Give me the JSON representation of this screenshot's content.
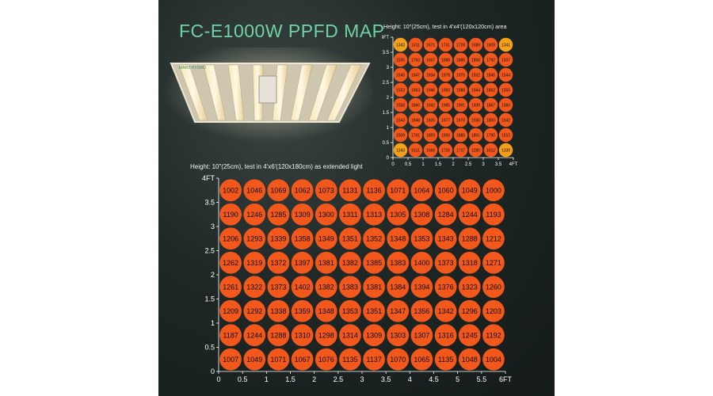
{
  "title": "FC-E1000W PPFD MAP",
  "lamp": {
    "brand_text": "MARS HYDRO"
  },
  "colors": {
    "title": "#6fd1a4",
    "dot": "#f2571c",
    "dot_corner": "#f4a01b",
    "axis": "#ffffff",
    "text": "#111111"
  },
  "chart_data": [
    {
      "type": "heatmap",
      "caption": "Height: 10\"(25cm), test in 4'x4'(120x120cm) area",
      "x_ticks": [
        "0",
        "0.5",
        "1",
        "1.5",
        "2",
        "2.5",
        "3",
        "3.5",
        "4FT"
      ],
      "y_ticks": [
        "0",
        "0.5",
        "1",
        "1.5",
        "2",
        "2.5",
        "3",
        "3.5",
        "4FT"
      ],
      "xlim": [
        0,
        4
      ],
      "ylim": [
        0,
        4
      ],
      "rows": [
        [
          1342,
          1611,
          1671,
          1731,
          1728,
          1689,
          1609,
          1341
        ],
        [
          1505,
          1793,
          1657,
          1888,
          1886,
          1856,
          1792,
          1507
        ],
        [
          1545,
          1847,
          1934,
          1978,
          1975,
          1932,
          1845,
          1544
        ],
        [
          1553,
          1863,
          1946,
          1993,
          1988,
          1944,
          1862,
          1555
        ],
        [
          1558,
          1860,
          1942,
          1985,
          1991,
          1939,
          1867,
          1560
        ],
        [
          1543,
          1848,
          1935,
          1977,
          1970,
          1930,
          1850,
          1542
        ],
        [
          1509,
          1791,
          1859,
          1890,
          1885,
          1851,
          1790,
          1510
        ],
        [
          1343,
          1611,
          1666,
          1726,
          1737,
          1280,
          1612,
          1339
        ]
      ]
    },
    {
      "type": "heatmap",
      "caption": "Height: 10\"(25cm), test in 4'x6'(120x180cm) as extended light",
      "x_ticks": [
        "0",
        "0.5",
        "1",
        "1.5",
        "2",
        "2.5",
        "3",
        "3.5",
        "4",
        "4.5",
        "5",
        "5.5",
        "6FT"
      ],
      "y_ticks": [
        "0",
        "0.5",
        "1",
        "1.5",
        "2",
        "2.5",
        "3",
        "3.5",
        "4FT"
      ],
      "xlim": [
        0,
        6
      ],
      "ylim": [
        0,
        4
      ],
      "rows": [
        [
          1002,
          1046,
          1069,
          1062,
          1073,
          1131,
          1136,
          1071,
          1064,
          1060,
          1049,
          1000
        ],
        [
          1190,
          1246,
          1285,
          1309,
          1300,
          1311,
          1313,
          1305,
          1308,
          1284,
          1244,
          1193
        ],
        [
          1206,
          1293,
          1339,
          1358,
          1349,
          1351,
          1352,
          1348,
          1353,
          1343,
          1288,
          1212
        ],
        [
          1262,
          1319,
          1372,
          1397,
          1381,
          1382,
          1385,
          1383,
          1400,
          1373,
          1318,
          1271
        ],
        [
          1261,
          1322,
          1373,
          1402,
          1382,
          1383,
          1381,
          1384,
          1394,
          1376,
          1323,
          1260
        ],
        [
          1209,
          1292,
          1338,
          1359,
          1348,
          1353,
          1351,
          1347,
          1356,
          1342,
          1296,
          1203
        ],
        [
          1187,
          1244,
          1288,
          1310,
          1298,
          1314,
          1309,
          1303,
          1307,
          1316,
          1245,
          1192
        ],
        [
          1007,
          1049,
          1071,
          1067,
          1076,
          1135,
          1137,
          1070,
          1065,
          1135,
          1048,
          1004
        ]
      ]
    }
  ]
}
